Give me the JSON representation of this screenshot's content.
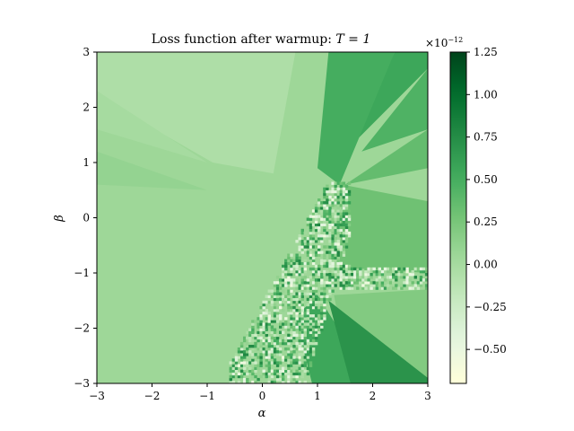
{
  "chart_data": {
    "type": "heatmap",
    "title": "Loss function after warmup: T = 1",
    "title_prefix": "Loss function after warmup: ",
    "title_math": "T = 1",
    "xlabel": "α",
    "ylabel": "β",
    "xlim": [
      -3,
      3
    ],
    "ylim": [
      -3,
      3
    ],
    "x_ticks": [
      -3,
      -2,
      -1,
      0,
      1,
      2,
      3
    ],
    "y_ticks": [
      -3,
      -2,
      -1,
      0,
      1,
      2,
      3
    ],
    "x_tick_labels": [
      "−3",
      "−2",
      "−1",
      "0",
      "1",
      "2",
      "3"
    ],
    "y_tick_labels": [
      "−3",
      "−2",
      "−1",
      "0",
      "1",
      "2",
      "3"
    ],
    "colormap": "Greens",
    "colorbar": {
      "range": [
        -0.7,
        1.25
      ],
      "ticks": [
        1.25,
        1.0,
        0.75,
        0.5,
        0.25,
        0.0,
        -0.25,
        -0.5
      ],
      "tick_labels": [
        "1.25",
        "1.00",
        "0.75",
        "0.50",
        "0.25",
        "0.00",
        "−0.25",
        "−0.50"
      ],
      "scale_label": "×10",
      "scale_exponent": "−12"
    },
    "region_values": {
      "background": 0.05,
      "upper_left_wedge": -0.05,
      "upper_left_band": 0.0,
      "left_band": 0.1,
      "upper_right_sectors": [
        0.55,
        0.45,
        0.35,
        0.5
      ],
      "right_band": 0.3,
      "lower_right": 0.2,
      "lower_cone": 0.55,
      "lower_cone_dark": 0.7,
      "noise_min": -0.55,
      "noise_max": 0.8
    }
  }
}
